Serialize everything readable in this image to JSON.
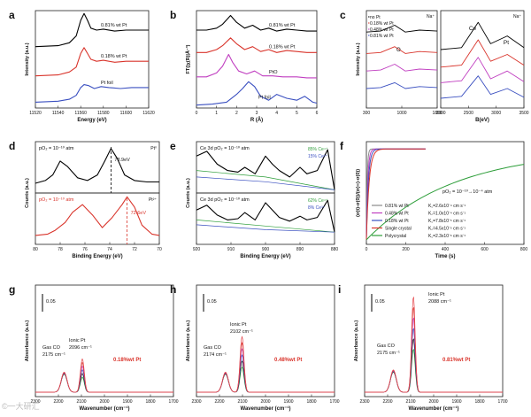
{
  "watermark": "©一大研汇",
  "chart_data": [
    {
      "panel": "a",
      "type": "line",
      "xlabel": "Energy (eV)",
      "ylabel": "Intensity (a.u.)",
      "xlim": [
        11520,
        11620
      ],
      "ylim": [
        0,
        1
      ],
      "xticks": [
        "11520",
        "11540",
        "11560",
        "11580",
        "11600",
        "11620"
      ],
      "series": [
        {
          "name": "0.81% wt Pt",
          "color": "#000000",
          "x": [
            11520,
            11540,
            11550,
            11556,
            11560,
            11563,
            11566,
            11569,
            11574,
            11580,
            11590,
            11600,
            11610,
            11620
          ],
          "y": [
            0.63,
            0.64,
            0.67,
            0.74,
            0.9,
            0.97,
            0.9,
            0.82,
            0.8,
            0.81,
            0.79,
            0.8,
            0.8,
            0.8
          ]
        },
        {
          "name": "0.18% wt Pt",
          "color": "#d9342b",
          "x": [
            11520,
            11540,
            11550,
            11556,
            11560,
            11563,
            11566,
            11569,
            11574,
            11580,
            11590,
            11600,
            11610,
            11620
          ],
          "y": [
            0.33,
            0.34,
            0.37,
            0.42,
            0.56,
            0.62,
            0.56,
            0.5,
            0.48,
            0.49,
            0.47,
            0.48,
            0.48,
            0.48
          ]
        },
        {
          "name": "Pt foil",
          "color": "#3a4fc0",
          "x": [
            11520,
            11540,
            11550,
            11556,
            11560,
            11563,
            11567,
            11572,
            11578,
            11585,
            11595,
            11605,
            11620
          ],
          "y": [
            0.06,
            0.07,
            0.09,
            0.13,
            0.21,
            0.24,
            0.23,
            0.2,
            0.22,
            0.21,
            0.2,
            0.21,
            0.21
          ]
        }
      ]
    },
    {
      "panel": "b",
      "type": "line",
      "xlabel": "R (Å)",
      "ylabel": "FT(|χ(R)|Å⁻³)",
      "xlim": [
        0,
        6
      ],
      "ylim": [
        0,
        1
      ],
      "xticks": [
        "0",
        "1",
        "2",
        "3",
        "4",
        "5",
        "6"
      ],
      "series": [
        {
          "name": "0.81% wt Pt",
          "color": "#000000",
          "x": [
            0,
            0.5,
            1.0,
            1.3,
            1.7,
            2.0,
            2.4,
            2.8,
            3.2,
            3.6,
            4.0,
            4.5,
            5.0,
            5.5,
            6.0
          ],
          "y": [
            0.8,
            0.8,
            0.82,
            0.86,
            0.95,
            0.88,
            0.82,
            0.85,
            0.8,
            0.82,
            0.79,
            0.81,
            0.8,
            0.79,
            0.79
          ]
        },
        {
          "name": "0.18% wt Pt",
          "color": "#d9342b",
          "x": [
            0,
            0.5,
            1.0,
            1.3,
            1.7,
            2.0,
            2.4,
            2.8,
            3.2,
            3.6,
            4.0,
            4.5,
            5.0,
            5.5,
            6.0
          ],
          "y": [
            0.57,
            0.57,
            0.6,
            0.64,
            0.72,
            0.66,
            0.6,
            0.63,
            0.58,
            0.6,
            0.57,
            0.59,
            0.58,
            0.57,
            0.57
          ]
        },
        {
          "name": "PtO",
          "color": "#c03ec0",
          "x": [
            0,
            0.5,
            1.0,
            1.3,
            1.6,
            1.8,
            2.1,
            2.5,
            2.9,
            3.3,
            3.8,
            4.3,
            5.0,
            5.5,
            6.0
          ],
          "y": [
            0.32,
            0.32,
            0.36,
            0.43,
            0.55,
            0.47,
            0.38,
            0.35,
            0.38,
            0.33,
            0.33,
            0.32,
            0.32,
            0.31,
            0.31
          ]
        },
        {
          "name": "Pt foil",
          "color": "#3a4fc0",
          "x": [
            0,
            0.8,
            1.5,
            2.0,
            2.3,
            2.6,
            2.9,
            3.2,
            3.6,
            4.0,
            4.5,
            5.0,
            5.4,
            5.8,
            6.0
          ],
          "y": [
            0.03,
            0.04,
            0.06,
            0.14,
            0.2,
            0.27,
            0.22,
            0.12,
            0.08,
            0.14,
            0.1,
            0.08,
            0.12,
            0.06,
            0.05
          ]
        }
      ]
    },
    {
      "panel": "c",
      "type": "line",
      "xlabel": "B(eV)",
      "ylabel": "Intensity (a.u.)",
      "left": {
        "xlim": [
          200,
          1800
        ],
        "xticks": [
          "300",
          "1000",
          "1800"
        ],
        "note": "Na⁺",
        "peak_label": "O"
      },
      "right": {
        "xlim": [
          2000,
          3500
        ],
        "xticks": [
          "2000",
          "2500",
          "3000",
          "3500"
        ],
        "note": "Na⁺",
        "peak_labels": [
          "Ce",
          "Pt"
        ]
      },
      "series": [
        {
          "name": "no Pt",
          "color": "#000000",
          "left_y": [
            0.78,
            0.79,
            0.85,
            0.78,
            0.8,
            0.79
          ],
          "right_y": [
            0.6,
            0.62,
            0.88,
            0.66,
            0.74,
            0.62
          ]
        },
        {
          "name": "0.18% wt Pt",
          "color": "#d9342b",
          "left_y": [
            0.56,
            0.57,
            0.63,
            0.56,
            0.58,
            0.57
          ],
          "right_y": [
            0.42,
            0.44,
            0.7,
            0.48,
            0.55,
            0.44
          ]
        },
        {
          "name": "0.48% wt Pt",
          "color": "#c03ec0",
          "left_y": [
            0.38,
            0.39,
            0.45,
            0.38,
            0.4,
            0.39
          ],
          "right_y": [
            0.26,
            0.28,
            0.52,
            0.3,
            0.38,
            0.27
          ]
        },
        {
          "name": "0.81% wt Pt",
          "color": "#3a4fc0",
          "left_y": [
            0.2,
            0.21,
            0.26,
            0.2,
            0.22,
            0.21
          ],
          "right_y": [
            0.1,
            0.12,
            0.33,
            0.14,
            0.2,
            0.11
          ]
        }
      ]
    },
    {
      "panel": "d",
      "type": "line",
      "xlabel": "Binding Energy (eV)",
      "ylabel": "Counts (a.u.)",
      "xlim": [
        80,
        70
      ],
      "xticks": [
        "80",
        "78",
        "76",
        "74",
        "72",
        "70"
      ],
      "upper": {
        "condition": "pO₂ = 10⁻¹⁰ atm",
        "note": "Pt⁰",
        "peak_label": "73.9eV",
        "color": "#000000",
        "x": [
          80,
          79.2,
          78.6,
          78.0,
          77.4,
          76.6,
          75.8,
          75.0,
          74.4,
          73.9,
          73.4,
          72.8,
          72.0,
          71.0,
          70.0
        ],
        "y": [
          0.72,
          0.74,
          0.78,
          0.88,
          0.84,
          0.76,
          0.74,
          0.78,
          0.88,
          0.97,
          0.9,
          0.78,
          0.74,
          0.73,
          0.73
        ]
      },
      "lower": {
        "condition": "pO₂ = 10⁻¹⁰ atm",
        "note": "Pt²⁺",
        "peak_label": "72.6eV",
        "color": "#d9342b",
        "x": [
          80,
          79.0,
          78.4,
          77.6,
          77.0,
          76.2,
          75.4,
          74.6,
          73.8,
          73.0,
          72.6,
          72.0,
          71.4,
          70.6,
          70.0
        ],
        "y": [
          0.12,
          0.13,
          0.16,
          0.22,
          0.3,
          0.36,
          0.28,
          0.18,
          0.26,
          0.36,
          0.42,
          0.34,
          0.2,
          0.13,
          0.12
        ]
      }
    },
    {
      "panel": "e",
      "type": "line",
      "xlabel": "Binding Energy (eV)",
      "ylabel": "Counts (a.u.)",
      "xlim": [
        920,
        880
      ],
      "xticks": [
        "920",
        "910",
        "900",
        "890",
        "880"
      ],
      "upper": {
        "label": "Ce 3d  pO₂ = 10⁻¹⁰ atm",
        "legend": [
          {
            "name": "85% Ce⁴⁺",
            "color": "#2e9e3a"
          },
          {
            "name": "15% Ce³⁺",
            "color": "#3a4fc0"
          }
        ],
        "color": "#000000",
        "x": [
          920,
          917,
          914,
          911,
          908,
          906,
          903,
          900,
          898,
          896,
          893,
          890,
          888,
          885,
          882,
          880
        ],
        "y": [
          0.93,
          0.96,
          0.88,
          0.84,
          0.83,
          0.86,
          0.82,
          0.93,
          0.88,
          0.84,
          0.8,
          0.86,
          0.82,
          0.84,
          0.97,
          0.72
        ]
      },
      "lower": {
        "label": "Ce 3d  pO₂ = 10⁻¹⁰ atm",
        "legend": [
          {
            "name": "62% Ce⁴⁺",
            "color": "#2e9e3a"
          },
          {
            "name": "8% Ce³⁺",
            "color": "#3a4fc0"
          }
        ],
        "color": "#000000",
        "x": [
          920,
          917,
          914,
          911,
          908,
          906,
          903,
          900,
          898,
          896,
          893,
          890,
          888,
          885,
          882,
          880
        ],
        "y": [
          0.38,
          0.42,
          0.34,
          0.3,
          0.31,
          0.36,
          0.3,
          0.44,
          0.38,
          0.32,
          0.29,
          0.33,
          0.3,
          0.32,
          0.46,
          0.2
        ]
      }
    },
    {
      "panel": "f",
      "type": "line",
      "xlabel": "Time (s)",
      "ylabel": "(σ(t)-σ(0))/(σ(∞)-σ(0))",
      "xlim": [
        0,
        800
      ],
      "ylim": [
        0,
        1
      ],
      "xticks": [
        "0",
        "200",
        "400",
        "600",
        "800"
      ],
      "condition": "pO₂ = 10⁻¹⁰→10⁻⁴ atm",
      "series": [
        {
          "name": "0.81% wt Pt",
          "k": "K꜀=2.6x10⁻⁴ cm s⁻¹",
          "color": "#8a8a8a",
          "tau": 4
        },
        {
          "name": "0.48% wt Pt",
          "k": "K꜀=1.0x10⁻⁴ cm s⁻¹",
          "color": "#c03ec0",
          "tau": 7
        },
        {
          "name": "0.18% wt Pt",
          "k": "K꜀=7.8x10⁻⁵ cm s⁻¹",
          "color": "#3a4fc0",
          "tau": 10
        },
        {
          "name": "Single crystal",
          "k": "K꜀=4.5x10⁻⁵ cm s⁻¹",
          "color": "#d9342b",
          "tau": 14
        },
        {
          "name": "Polycrystal",
          "k": "K꜀=2.3x10⁻⁶ cm s⁻¹",
          "color": "#2e9e3a",
          "tau": 450
        }
      ]
    },
    {
      "panel": "g",
      "type": "line",
      "xlabel": "Wavenumber (cm⁻¹)",
      "ylabel": "Absorbance (a.u.)",
      "xlim": [
        2300,
        1700
      ],
      "xticks": [
        "2300",
        "2200",
        "2100",
        "2000",
        "1900",
        "1800",
        "1700"
      ],
      "scalebar": "0.05",
      "sample": "0.18%wt Pt",
      "annotations": [
        "Gas CO",
        "2175 cm⁻¹",
        "Ionic Pt",
        "2096 cm⁻¹"
      ],
      "peaks": [
        {
          "center": 2175,
          "height": 0.18,
          "width": 18
        },
        {
          "center": 2096,
          "height": 0.3,
          "width": 12
        }
      ]
    },
    {
      "panel": "h",
      "type": "line",
      "xlabel": "Wavenumber (cm⁻¹)",
      "ylabel": "Absorbance (a.u.)",
      "xlim": [
        2300,
        1700
      ],
      "xticks": [
        "2300",
        "2200",
        "2100",
        "2000",
        "1900",
        "1800",
        "1700"
      ],
      "scalebar": "0.05",
      "sample": "0.48%wt Pt",
      "annotations": [
        "Gas CO",
        "2174 cm⁻¹",
        "Ionic Pt",
        "2102 cm⁻¹"
      ],
      "peaks": [
        {
          "center": 2174,
          "height": 0.18,
          "width": 18
        },
        {
          "center": 2102,
          "height": 0.5,
          "width": 12
        }
      ]
    },
    {
      "panel": "i",
      "type": "line",
      "xlabel": "Wavenumber (cm⁻¹)",
      "ylabel": "Absorbance (a.u.)",
      "xlim": [
        2300,
        1700
      ],
      "xticks": [
        "2300",
        "2200",
        "2100",
        "2000",
        "1900",
        "1800",
        "1700"
      ],
      "scalebar": "0.05",
      "sample": "0.81%wt Pt",
      "annotations": [
        "Ionic Pt",
        "2088 cm⁻¹",
        "Gas CO",
        "2175 cm⁻¹"
      ],
      "peaks": [
        {
          "center": 2175,
          "height": 0.2,
          "width": 18
        },
        {
          "center": 2088,
          "height": 0.86,
          "width": 11
        }
      ]
    }
  ]
}
